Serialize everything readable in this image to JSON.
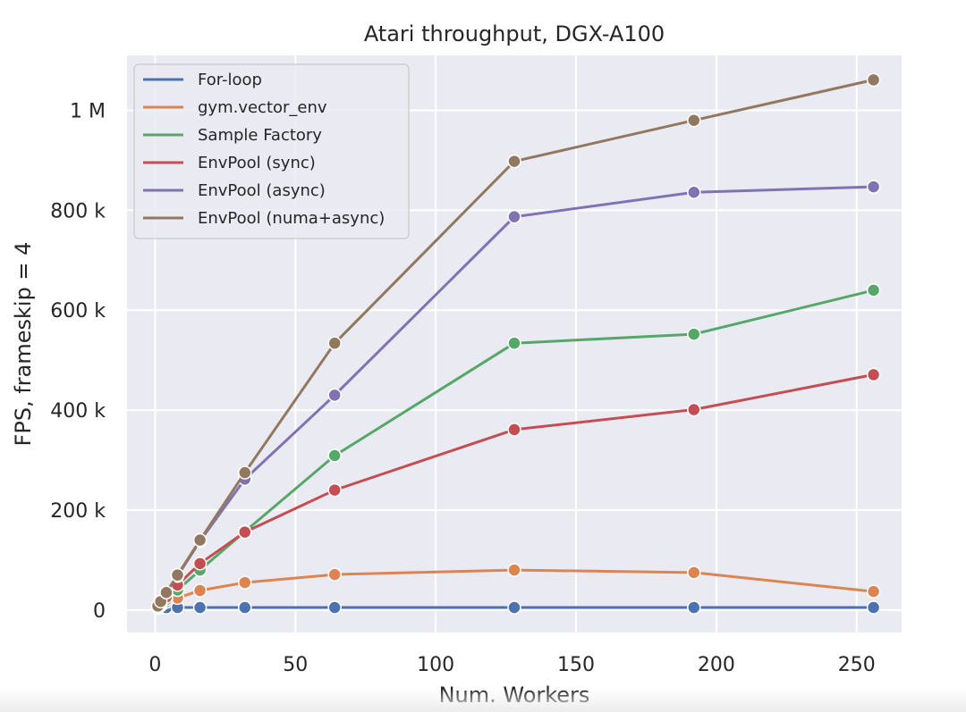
{
  "chart_data": {
    "type": "line",
    "title": "Atari throughput, DGX-A100",
    "xlabel": "Num. Workers",
    "ylabel": "FPS, frameskip = 4",
    "xlim": [
      -10,
      266
    ],
    "ylim": [
      -45000,
      1110000
    ],
    "xticks": [
      0,
      50,
      100,
      150,
      200,
      250
    ],
    "xtick_labels": [
      "0",
      "50",
      "100",
      "150",
      "200",
      "250"
    ],
    "yticks": [
      0,
      200000,
      400000,
      600000,
      800000,
      1000000
    ],
    "ytick_labels": [
      "0",
      "200 k",
      "400 k",
      "600 k",
      "800 k",
      "1 M"
    ],
    "grid": true,
    "legend_position": "top-left",
    "series": [
      {
        "name": "For-loop",
        "color": "#4c72b0",
        "x": [
          1,
          2,
          4,
          8,
          16,
          32,
          64,
          128,
          192,
          256
        ],
        "y": [
          4000,
          4500,
          4800,
          5000,
          5000,
          5000,
          5000,
          5000,
          5000,
          5000
        ]
      },
      {
        "name": "gym.vector_env",
        "color": "#dd8452",
        "x": [
          1,
          2,
          4,
          8,
          16,
          32,
          64,
          128,
          192,
          256
        ],
        "y": [
          5000,
          9000,
          16000,
          24000,
          39000,
          55000,
          71000,
          80000,
          75000,
          37000
        ]
      },
      {
        "name": "Sample Factory",
        "color": "#55a868",
        "x": [
          1,
          2,
          4,
          8,
          16,
          32,
          64,
          128,
          192,
          256
        ],
        "y": [
          6000,
          11000,
          21000,
          40000,
          80000,
          157000,
          309000,
          534000,
          552000,
          640000
        ]
      },
      {
        "name": "EnvPool (sync)",
        "color": "#c44e52",
        "x": [
          1,
          2,
          4,
          8,
          16,
          32,
          64,
          128,
          192,
          256
        ],
        "y": [
          7000,
          13000,
          26000,
          50000,
          93000,
          156000,
          240000,
          361000,
          401000,
          471000
        ]
      },
      {
        "name": "EnvPool (async)",
        "color": "#8172b3",
        "x": [
          1,
          2,
          4,
          8,
          16,
          32,
          64,
          128,
          192,
          256
        ],
        "y": [
          8000,
          17000,
          35000,
          68000,
          138000,
          262000,
          430000,
          787000,
          836000,
          847000
        ]
      },
      {
        "name": "EnvPool (numa+async)",
        "color": "#937860",
        "x": [
          1,
          2,
          4,
          8,
          16,
          32,
          64,
          128,
          192,
          256
        ],
        "y": [
          8000,
          17000,
          35000,
          70000,
          140000,
          275000,
          534000,
          898000,
          980000,
          1061000
        ]
      }
    ]
  }
}
